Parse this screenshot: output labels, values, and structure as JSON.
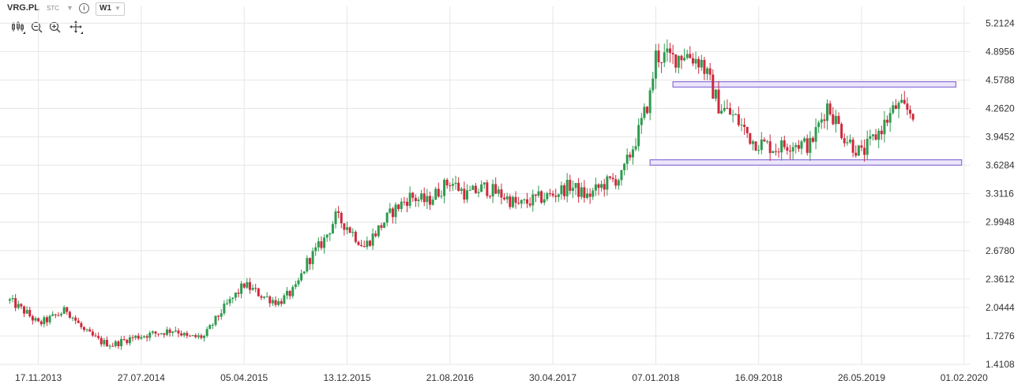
{
  "toolbar": {
    "symbol": "VRG.PL",
    "exchange": "STC",
    "interval": "W1",
    "icons": [
      "candles-icon",
      "zoom-out-icon",
      "zoom-in-icon",
      "crosshair-icon"
    ]
  },
  "colors": {
    "up": "#2e9b4f",
    "down": "#d0283c",
    "grid": "#e6e6e6",
    "zone_fill": "#ece6fb",
    "zone_stroke": "#8a70d6"
  },
  "chart_data": {
    "type": "candlestick",
    "title": "",
    "ylim": [
      1.4108,
      5.4
    ],
    "y_ticks": [
      "5.2124",
      "4.8956",
      "4.5788",
      "4.2620",
      "3.9452",
      "3.6284",
      "3.3116",
      "2.9948",
      "2.6780",
      "2.3612",
      "2.0444",
      "1.7276",
      "1.4108"
    ],
    "x_ticks": [
      "17.11.2013",
      "27.07.2014",
      "05.04.2015",
      "13.12.2015",
      "21.08.2016",
      "30.04.2017",
      "07.01.2018",
      "16.09.2018",
      "26.05.2019",
      "01.02.2020"
    ],
    "x_tick_dates": [
      "2013-11-17",
      "2014-07-27",
      "2015-04-05",
      "2015-12-13",
      "2016-08-21",
      "2017-04-30",
      "2018-01-07",
      "2018-09-16",
      "2019-05-26",
      "2020-02-01"
    ],
    "grid": true,
    "y_axis_position": "right",
    "anchor_points": [
      [
        "2013-09-08",
        2.12
      ],
      [
        "2013-10-20",
        1.98
      ],
      [
        "2013-11-17",
        1.86
      ],
      [
        "2013-12-29",
        1.95
      ],
      [
        "2014-01-26",
        2.02
      ],
      [
        "2014-03-09",
        1.78
      ],
      [
        "2014-04-20",
        1.66
      ],
      [
        "2014-05-18",
        1.63
      ],
      [
        "2014-06-29",
        1.7
      ],
      [
        "2014-07-27",
        1.73
      ],
      [
        "2014-09-07",
        1.76
      ],
      [
        "2014-10-19",
        1.8
      ],
      [
        "2014-11-16",
        1.71
      ],
      [
        "2014-12-28",
        1.72
      ],
      [
        "2015-02-08",
        2.0
      ],
      [
        "2015-03-22",
        2.22
      ],
      [
        "2015-04-05",
        2.3
      ],
      [
        "2015-05-17",
        2.18
      ],
      [
        "2015-06-28",
        2.1
      ],
      [
        "2015-08-09",
        2.25
      ],
      [
        "2015-09-06",
        2.55
      ],
      [
        "2015-10-18",
        2.8
      ],
      [
        "2015-11-15",
        3.05
      ],
      [
        "2015-12-13",
        2.95
      ],
      [
        "2016-01-24",
        2.72
      ],
      [
        "2016-02-21",
        2.88
      ],
      [
        "2016-04-03",
        3.12
      ],
      [
        "2016-05-15",
        3.28
      ],
      [
        "2016-06-26",
        3.22
      ],
      [
        "2016-08-07",
        3.4
      ],
      [
        "2016-08-21",
        3.45
      ],
      [
        "2016-10-02",
        3.3
      ],
      [
        "2016-11-13",
        3.38
      ],
      [
        "2016-12-25",
        3.3
      ],
      [
        "2017-02-05",
        3.18
      ],
      [
        "2017-03-19",
        3.25
      ],
      [
        "2017-04-30",
        3.3
      ],
      [
        "2017-06-11",
        3.4
      ],
      [
        "2017-07-23",
        3.28
      ],
      [
        "2017-09-03",
        3.42
      ],
      [
        "2017-10-15",
        3.5
      ],
      [
        "2017-11-26",
        4.0
      ],
      [
        "2017-12-24",
        4.4
      ],
      [
        "2018-01-07",
        4.85
      ],
      [
        "2018-02-18",
        4.82
      ],
      [
        "2018-03-18",
        4.88
      ],
      [
        "2018-04-29",
        4.78
      ],
      [
        "2018-06-10",
        4.3
      ],
      [
        "2018-07-22",
        4.15
      ],
      [
        "2018-09-02",
        3.9
      ],
      [
        "2018-09-16",
        3.88
      ],
      [
        "2018-10-28",
        3.82
      ],
      [
        "2018-12-09",
        3.88
      ],
      [
        "2019-01-20",
        3.85
      ],
      [
        "2019-03-03",
        4.3
      ],
      [
        "2019-04-14",
        3.95
      ],
      [
        "2019-05-26",
        3.75
      ],
      [
        "2019-07-07",
        4.0
      ],
      [
        "2019-08-18",
        4.28
      ],
      [
        "2019-09-29",
        4.22
      ]
    ],
    "zones": [
      {
        "from": "2018-02-18",
        "to": "2020-01-12",
        "low": 4.5,
        "high": 4.56
      },
      {
        "from": "2017-12-24",
        "to": "2020-01-26",
        "low": 3.63,
        "high": 3.69
      }
    ],
    "x_range": [
      "2013-08-15",
      "2020-02-15"
    ]
  }
}
